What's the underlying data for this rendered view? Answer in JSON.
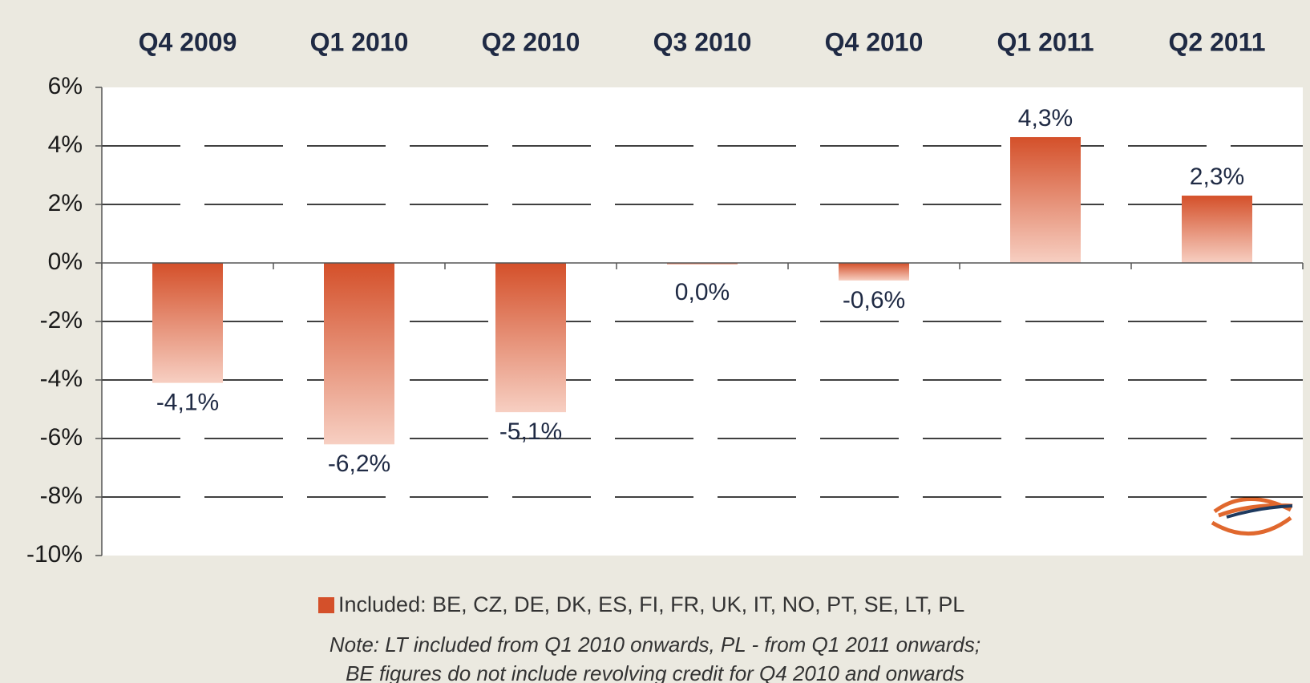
{
  "chart_data": {
    "type": "bar",
    "categories": [
      "Q4 2009",
      "Q1 2010",
      "Q2 2010",
      "Q3 2010",
      "Q4 2010",
      "Q1 2011",
      "Q2 2011"
    ],
    "series": [
      {
        "name": "Included: BE, CZ, DE, DK, ES, FI, FR, UK, IT, NO, PT, SE, LT, PL",
        "color": "#d4502a",
        "values": [
          -4.1,
          -6.2,
          -5.1,
          0.0,
          -0.6,
          4.3,
          2.3
        ],
        "value_labels": [
          "-4,1%",
          "-6,2%",
          "-5,1%",
          "0,0%",
          "-0,6%",
          "4,3%",
          "2,3%"
        ]
      }
    ],
    "ylim": [
      -10,
      6
    ],
    "yticks": [
      {
        "value": -10,
        "label": "-10%"
      },
      {
        "value": -8,
        "label": "-8%"
      },
      {
        "value": -6,
        "label": "-6%"
      },
      {
        "value": -4,
        "label": "-4%"
      },
      {
        "value": -2,
        "label": "-2%"
      },
      {
        "value": 0,
        "label": "0%"
      },
      {
        "value": 2,
        "label": "2%"
      },
      {
        "value": 4,
        "label": "4%"
      },
      {
        "value": 6,
        "label": "6%"
      }
    ],
    "grid": true,
    "notes": [
      "Note: LT included from Q1 2010 onwards, PL - from Q1 2011 onwards;",
      "BE figures do not include revolving credit for Q4 2010 and onwards"
    ]
  }
}
